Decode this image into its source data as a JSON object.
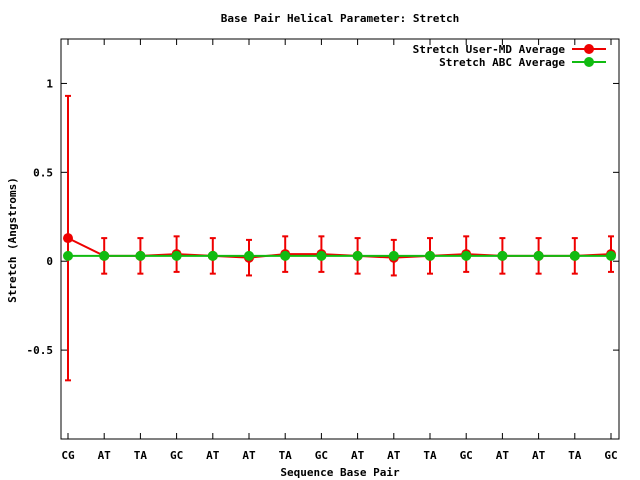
{
  "chart_data": {
    "type": "line",
    "title": "Base Pair Helical Parameter: Stretch",
    "xlabel": "Sequence Base Pair",
    "ylabel": "Stretch (Angstroms)",
    "categories": [
      "CG",
      "AT",
      "TA",
      "GC",
      "AT",
      "AT",
      "TA",
      "GC",
      "AT",
      "AT",
      "TA",
      "GC",
      "AT",
      "AT",
      "TA",
      "GC"
    ],
    "ylim": [
      -1.0,
      1.25
    ],
    "yticks": [
      -0.5,
      0,
      0.5,
      1
    ],
    "ytick_labels": [
      "-0.5",
      "0",
      "0.5",
      "1"
    ],
    "grid": false,
    "legend_position": "top-right",
    "series": [
      {
        "name": "Stretch User-MD Average",
        "color": "#ee0000",
        "values": [
          0.13,
          0.03,
          0.03,
          0.04,
          0.03,
          0.02,
          0.04,
          0.04,
          0.03,
          0.02,
          0.03,
          0.04,
          0.03,
          0.03,
          0.03,
          0.04
        ],
        "errors": [
          0.8,
          0.1,
          0.1,
          0.1,
          0.1,
          0.1,
          0.1,
          0.1,
          0.1,
          0.1,
          0.1,
          0.1,
          0.1,
          0.1,
          0.1,
          0.1
        ]
      },
      {
        "name": "Stretch ABC Average",
        "color": "#11bb11",
        "values": [
          0.03,
          0.03,
          0.03,
          0.03,
          0.03,
          0.03,
          0.03,
          0.03,
          0.03,
          0.03,
          0.03,
          0.03,
          0.03,
          0.03,
          0.03,
          0.03
        ]
      }
    ]
  }
}
